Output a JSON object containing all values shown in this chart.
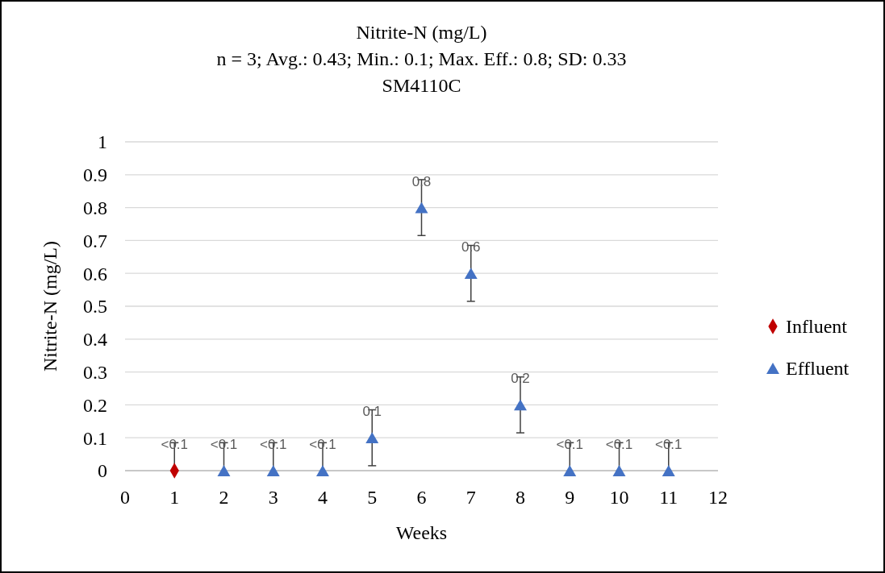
{
  "chart_data": {
    "type": "scatter",
    "title": "Nitrite-N (mg/L)",
    "subtitle": "n = 3; Avg.: 0.43; Min.: 0.1; Max. Eff.: 0.8; SD: 0.33",
    "annotations": [
      "SM4110C"
    ],
    "xlabel": "Weeks",
    "ylabel": "Nitrite-N (mg/L)",
    "xlim": [
      0,
      12
    ],
    "xticks": [
      0,
      1,
      2,
      3,
      4,
      5,
      6,
      7,
      8,
      9,
      10,
      11,
      12
    ],
    "ylim": [
      0,
      1
    ],
    "yticks": [
      0,
      0.1,
      0.2,
      0.3,
      0.4,
      0.5,
      0.6,
      0.7,
      0.8,
      0.9,
      1
    ],
    "grid": "y",
    "legend": "right",
    "series": [
      {
        "name": "Influent",
        "color": "#c00000",
        "marker": "diamond",
        "x": [
          1
        ],
        "values": [
          0
        ],
        "errors": [
          [
            0,
            0.085
          ]
        ],
        "value_labels": [
          "<0.1"
        ]
      },
      {
        "name": "Effluent",
        "color": "#4472c4",
        "marker": "triangle",
        "x": [
          2,
          3,
          4,
          5,
          6,
          7,
          8,
          9,
          10,
          11
        ],
        "values": [
          0,
          0,
          0,
          0.1,
          0.8,
          0.6,
          0.2,
          0,
          0,
          0
        ],
        "errors": [
          [
            0,
            0.085
          ],
          [
            0,
            0.085
          ],
          [
            0,
            0.085
          ],
          0.085,
          0.085,
          0.085,
          0.085,
          [
            0,
            0.085
          ],
          [
            0,
            0.085
          ],
          [
            0,
            0.085
          ]
        ],
        "value_labels": [
          "<0.1",
          "<0.1",
          "<0.1",
          "0.1",
          "0.8",
          "0.6",
          "0.2",
          "<0.1",
          "<0.1",
          "<0.1"
        ]
      }
    ]
  }
}
